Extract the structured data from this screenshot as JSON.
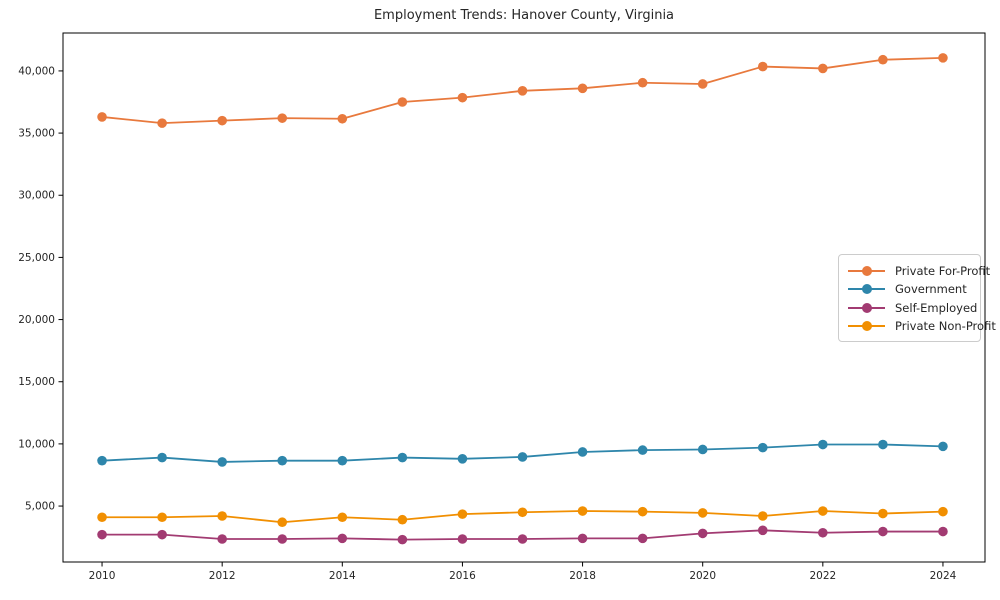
{
  "chart_data": {
    "type": "line",
    "title": "Employment Trends: Hanover County, Virginia",
    "xlabel": "",
    "ylabel": "",
    "x": [
      2010,
      2011,
      2012,
      2013,
      2014,
      2015,
      2016,
      2017,
      2018,
      2019,
      2020,
      2021,
      2022,
      2023,
      2024
    ],
    "series": [
      {
        "name": "Private For-Profit",
        "color": "#E8793D",
        "values": [
          36300,
          35800,
          36000,
          36200,
          36150,
          37500,
          37850,
          38400,
          38600,
          39050,
          38950,
          40350,
          40200,
          40900,
          41050
        ]
      },
      {
        "name": "Government",
        "color": "#2E86AB",
        "values": [
          8650,
          8900,
          8550,
          8650,
          8650,
          8900,
          8800,
          8950,
          9350,
          9500,
          9550,
          9700,
          9950,
          9950,
          9800
        ]
      },
      {
        "name": "Self-Employed",
        "color": "#A23B72",
        "values": [
          2700,
          2700,
          2350,
          2350,
          2400,
          2300,
          2350,
          2350,
          2400,
          2400,
          2800,
          3050,
          2850,
          2950,
          2950
        ]
      },
      {
        "name": "Private Non-Profit",
        "color": "#F18F01",
        "values": [
          4100,
          4100,
          4200,
          3700,
          4100,
          3900,
          4350,
          4500,
          4600,
          4550,
          4450,
          4200,
          4600,
          4400,
          4550
        ]
      }
    ],
    "x_ticks": {
      "values": [
        2010,
        2012,
        2014,
        2016,
        2018,
        2020,
        2022,
        2024
      ],
      "labels": [
        "2010",
        "2012",
        "2014",
        "2016",
        "2018",
        "2020",
        "2022",
        "2024"
      ]
    },
    "y_ticks": {
      "values": [
        5000,
        10000,
        15000,
        20000,
        25000,
        30000,
        35000,
        40000
      ],
      "labels": [
        "5,000",
        "10,000",
        "15,000",
        "20,000",
        "25,000",
        "30,000",
        "35,000",
        "40,000"
      ]
    },
    "xlim": [
      2009.35,
      2024.7
    ],
    "ylim": [
      500,
      43050
    ],
    "grid": false,
    "legend_position": "center-right",
    "axis_color": "#000000",
    "tick_label_color": "#262626"
  }
}
